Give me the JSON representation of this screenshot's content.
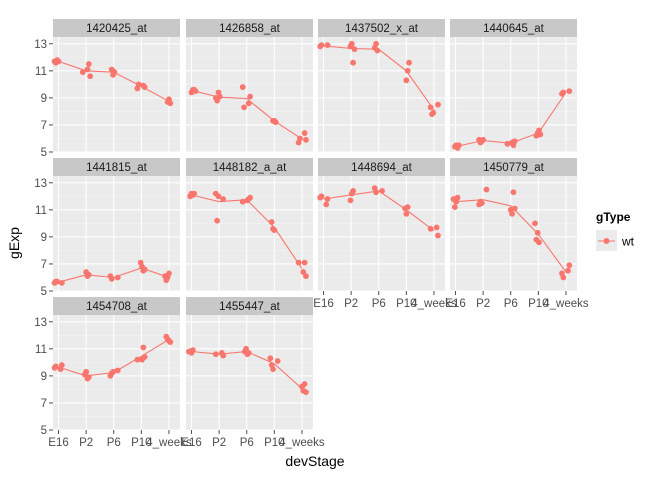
{
  "chart_data": {
    "type": "scatter",
    "xlabel": "devStage",
    "ylabel": "gExp",
    "categories": [
      "E16",
      "P2",
      "P6",
      "P10",
      "4_weeks"
    ],
    "ylim": [
      5,
      13.5
    ],
    "yticks": [
      5,
      7,
      9,
      11,
      13
    ],
    "grid": true,
    "legend": {
      "title": "gType",
      "entries": [
        "wt"
      ],
      "placement": "right"
    },
    "colors": {
      "series": "#f8766d",
      "panel_bg": "#ebebeb",
      "strip_bg": "#c8c8c8",
      "grid_major": "#ffffff",
      "grid_minor": "#f4f4f4"
    },
    "panels": [
      {
        "name": "1420425_at",
        "points": [
          [
            0,
            11.7
          ],
          [
            0,
            11.6
          ],
          [
            0,
            11.8
          ],
          [
            0,
            11.7
          ],
          [
            1,
            11.1
          ],
          [
            1,
            11.5
          ],
          [
            1,
            10.6
          ],
          [
            1,
            10.9
          ],
          [
            2,
            11.1
          ],
          [
            2,
            10.7
          ],
          [
            2,
            10.9
          ],
          [
            3,
            9.9
          ],
          [
            3,
            9.8
          ],
          [
            3,
            9.7
          ],
          [
            3,
            10.0
          ],
          [
            4,
            8.7
          ],
          [
            4,
            8.9
          ],
          [
            4,
            8.6
          ]
        ],
        "means": [
          11.7,
          11.0,
          10.9,
          9.85,
          8.75
        ]
      },
      {
        "name": "1426858_at",
        "points": [
          [
            0,
            9.4
          ],
          [
            0,
            9.6
          ],
          [
            0,
            9.6
          ],
          [
            0,
            9.5
          ],
          [
            1,
            9.0
          ],
          [
            1,
            8.8
          ],
          [
            1,
            9.4
          ],
          [
            1,
            9.1
          ],
          [
            2,
            8.6
          ],
          [
            2,
            9.1
          ],
          [
            2,
            9.8
          ],
          [
            2,
            8.3
          ],
          [
            3,
            7.3
          ],
          [
            3,
            7.3
          ],
          [
            3,
            7.2
          ],
          [
            4,
            6.4
          ],
          [
            4,
            5.9
          ],
          [
            4,
            5.7
          ],
          [
            4,
            6.0
          ]
        ],
        "means": [
          9.55,
          9.05,
          8.95,
          7.3,
          5.95
        ]
      },
      {
        "name": "1437502_x_at",
        "points": [
          [
            0,
            12.9
          ],
          [
            0,
            12.8
          ],
          [
            0,
            12.9
          ],
          [
            1,
            12.8
          ],
          [
            1,
            13.0
          ],
          [
            1,
            11.6
          ],
          [
            1,
            12.6
          ],
          [
            2,
            12.7
          ],
          [
            2,
            13.0
          ],
          [
            2,
            12.5
          ],
          [
            3,
            10.3
          ],
          [
            3,
            11.0
          ],
          [
            3,
            11.6
          ],
          [
            4,
            8.5
          ],
          [
            4,
            8.3
          ],
          [
            4,
            7.8
          ],
          [
            4,
            7.9
          ]
        ],
        "means": [
          12.85,
          12.65,
          12.6,
          11.0,
          8.1
        ]
      },
      {
        "name": "1440645_at",
        "points": [
          [
            0,
            5.4
          ],
          [
            0,
            5.5
          ],
          [
            0,
            5.3
          ],
          [
            0,
            5.5
          ],
          [
            1,
            5.9
          ],
          [
            1,
            5.7
          ],
          [
            1,
            5.8
          ],
          [
            1,
            5.9
          ],
          [
            2,
            5.7
          ],
          [
            2,
            5.5
          ],
          [
            2,
            5.8
          ],
          [
            2,
            5.6
          ],
          [
            3,
            6.2
          ],
          [
            3,
            6.4
          ],
          [
            3,
            6.6
          ],
          [
            3,
            6.3
          ],
          [
            4,
            9.5
          ],
          [
            4,
            9.3
          ],
          [
            4,
            9.4
          ]
        ],
        "means": [
          5.4,
          5.85,
          5.65,
          6.4,
          9.4
        ]
      },
      {
        "name": "1441815_at",
        "points": [
          [
            0,
            5.6
          ],
          [
            0,
            5.6
          ],
          [
            0,
            5.7
          ],
          [
            0,
            5.7
          ],
          [
            1,
            6.4
          ],
          [
            1,
            6.1
          ],
          [
            1,
            6.2
          ],
          [
            2,
            6.0
          ],
          [
            2,
            6.1
          ],
          [
            2,
            5.9
          ],
          [
            3,
            7.1
          ],
          [
            3,
            6.8
          ],
          [
            3,
            6.5
          ],
          [
            3,
            6.6
          ],
          [
            4,
            6.1
          ],
          [
            4,
            5.8
          ],
          [
            4,
            6.0
          ],
          [
            4,
            6.3
          ]
        ],
        "means": [
          5.65,
          6.2,
          6.0,
          6.7,
          6.0
        ]
      },
      {
        "name": "1448182_a_at",
        "points": [
          [
            0,
            12.0
          ],
          [
            0,
            12.2
          ],
          [
            0,
            12.1
          ],
          [
            0,
            12.2
          ],
          [
            1,
            11.8
          ],
          [
            1,
            12.2
          ],
          [
            1,
            10.2
          ],
          [
            1,
            12.0
          ],
          [
            2,
            11.7
          ],
          [
            2,
            11.8
          ],
          [
            2,
            11.9
          ],
          [
            2,
            11.6
          ],
          [
            3,
            10.1
          ],
          [
            3,
            9.6
          ],
          [
            3,
            9.5
          ],
          [
            4,
            6.4
          ],
          [
            4,
            7.1
          ],
          [
            4,
            6.1
          ],
          [
            4,
            7.1
          ]
        ],
        "means": [
          12.1,
          11.6,
          11.75,
          9.7,
          6.65
        ]
      },
      {
        "name": "1448694_at",
        "points": [
          [
            0,
            11.4
          ],
          [
            0,
            11.8
          ],
          [
            0,
            11.9
          ],
          [
            0,
            12.0
          ],
          [
            1,
            11.7
          ],
          [
            1,
            12.2
          ],
          [
            1,
            12.4
          ],
          [
            2,
            12.4
          ],
          [
            2,
            12.6
          ],
          [
            2,
            12.3
          ],
          [
            3,
            11.1
          ],
          [
            3,
            10.7
          ],
          [
            3,
            11.2
          ],
          [
            4,
            9.7
          ],
          [
            4,
            9.1
          ],
          [
            4,
            9.6
          ]
        ],
        "means": [
          11.8,
          12.1,
          12.4,
          11.0,
          9.45
        ]
      },
      {
        "name": "1450779_at",
        "points": [
          [
            0,
            11.8
          ],
          [
            0,
            11.2
          ],
          [
            0,
            11.6
          ],
          [
            0,
            11.9
          ],
          [
            1,
            12.5
          ],
          [
            1,
            11.4
          ],
          [
            1,
            11.6
          ],
          [
            1,
            11.5
          ],
          [
            2,
            11.0
          ],
          [
            2,
            10.7
          ],
          [
            2,
            12.3
          ],
          [
            2,
            11.1
          ],
          [
            3,
            10.0
          ],
          [
            3,
            8.8
          ],
          [
            3,
            9.3
          ],
          [
            3,
            8.6
          ],
          [
            4,
            6.5
          ],
          [
            4,
            6.9
          ],
          [
            4,
            6.3
          ],
          [
            4,
            6.0
          ]
        ],
        "means": [
          11.6,
          11.75,
          11.3,
          9.2,
          6.4
        ]
      },
      {
        "name": "1454708_at",
        "points": [
          [
            0,
            9.5
          ],
          [
            0,
            9.8
          ],
          [
            0,
            9.6
          ],
          [
            0,
            9.7
          ],
          [
            1,
            9.1
          ],
          [
            1,
            9.3
          ],
          [
            1,
            8.8
          ],
          [
            1,
            8.9
          ],
          [
            2,
            9.4
          ],
          [
            2,
            9.0
          ],
          [
            2,
            9.2
          ],
          [
            2,
            9.3
          ],
          [
            3,
            10.2
          ],
          [
            3,
            11.1
          ],
          [
            3,
            10.4
          ],
          [
            3,
            10.2
          ],
          [
            4,
            11.9
          ],
          [
            4,
            11.7
          ],
          [
            4,
            11.6
          ],
          [
            4,
            11.5
          ]
        ],
        "means": [
          9.65,
          9.0,
          9.25,
          10.45,
          11.7
        ]
      },
      {
        "name": "1455447_at",
        "points": [
          [
            0,
            10.8
          ],
          [
            0,
            10.8
          ],
          [
            0,
            10.7
          ],
          [
            0,
            10.9
          ],
          [
            1,
            10.7
          ],
          [
            1,
            10.5
          ],
          [
            1,
            10.6
          ],
          [
            2,
            10.8
          ],
          [
            2,
            11.0
          ],
          [
            2,
            10.6
          ],
          [
            2,
            10.7
          ],
          [
            3,
            10.1
          ],
          [
            3,
            10.3
          ],
          [
            3,
            9.8
          ],
          [
            3,
            9.5
          ],
          [
            4,
            8.2
          ],
          [
            4,
            7.9
          ],
          [
            4,
            8.4
          ],
          [
            4,
            7.8
          ]
        ],
        "means": [
          10.8,
          10.6,
          10.8,
          9.9,
          8.05
        ]
      }
    ]
  }
}
